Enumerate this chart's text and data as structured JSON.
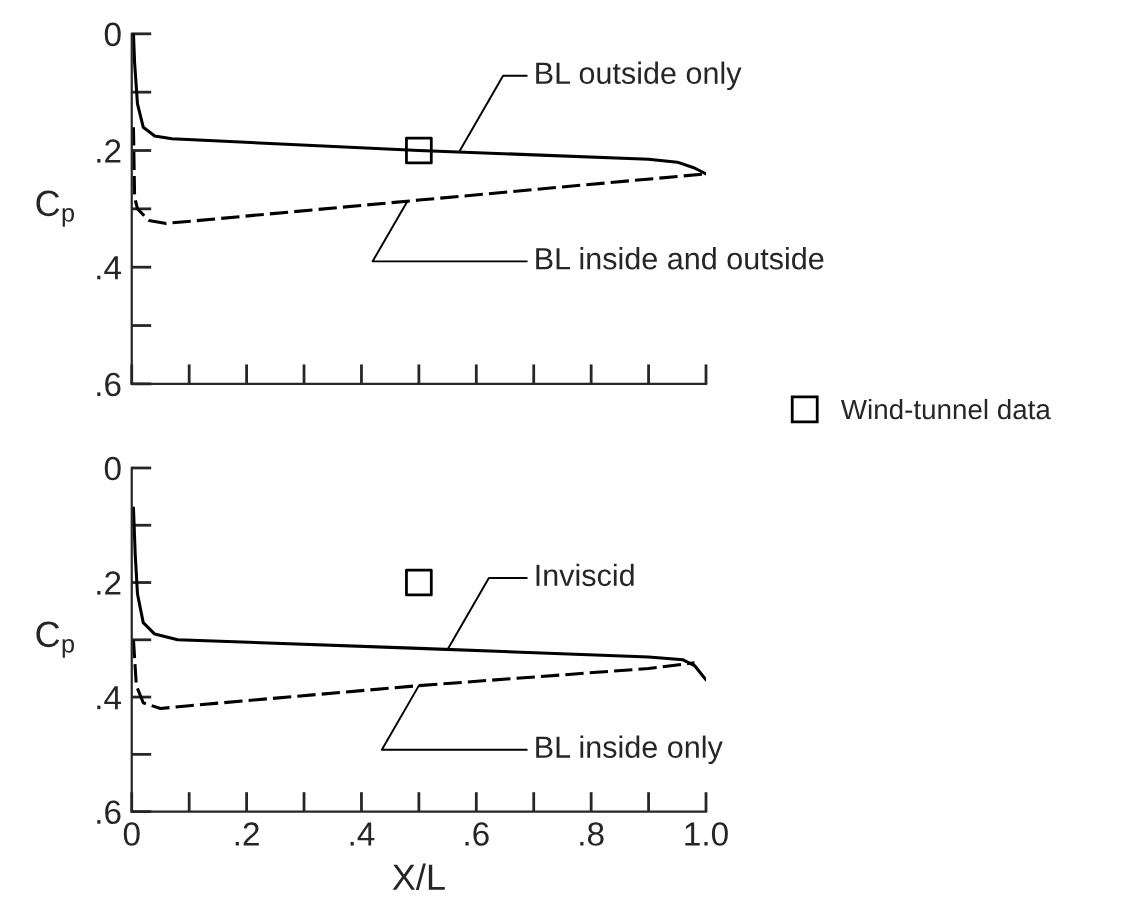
{
  "chart_data": [
    {
      "type": "line",
      "ylabel": "C$_{p}$",
      "xlim": [
        0,
        1.0
      ],
      "ylim": [
        0.6,
        0
      ],
      "tick_labels": "y",
      "legend": "right",
      "grid": false,
      "xticks": [
        0,
        {
          "value": 0.1,
          "label": null
        },
        {
          "value": 0.2,
          "label": null
        },
        {
          "value": 0.3,
          "label": null
        },
        {
          "value": 0.4,
          "label": null
        },
        {
          "value": 0.5,
          "label": null
        },
        {
          "value": 0.6,
          "label": null
        },
        {
          "value": 0.7,
          "label": null
        },
        {
          "value": 0.8,
          "label": null
        },
        {
          "value": 0.9,
          "label": null
        },
        {
          "value": 1.0,
          "label": null
        }
      ],
      "yticks": [
        0,
        {
          "value": 0.1,
          "label": null
        },
        {
          "value": 0.2,
          "label": ".2"
        },
        {
          "value": 0.3,
          "label": null
        },
        {
          "value": 0.4,
          "label": ".4"
        },
        {
          "value": 0.5,
          "label": null
        },
        {
          "value": 0.6,
          "label": ".6"
        }
      ],
      "series": [
        {
          "name": "BL outside only",
          "color": "#000000",
          "line_style": "solid",
          "marker": "none",
          "x": [
            0.003,
            0.005,
            0.01,
            0.02,
            0.04,
            0.07,
            0.5,
            0.9,
            0.95,
            0.98,
            1.0
          ],
          "values": [
            0.0,
            0.05,
            0.12,
            0.16,
            0.175,
            0.18,
            0.2,
            0.215,
            0.22,
            0.23,
            0.24
          ]
        },
        {
          "name": "BL inside and outside",
          "color": "#000000",
          "line_style": "dashed",
          "marker": "none",
          "x": [
            0.003,
            0.005,
            0.01,
            0.03,
            0.06,
            0.5,
            1.0
          ],
          "values": [
            0.16,
            0.28,
            0.3,
            0.32,
            0.325,
            0.285,
            0.24
          ]
        },
        {
          "name": "Wind-tunnel data",
          "type": "scatter",
          "color": "#000000",
          "marker": "square",
          "x": [
            0.5
          ],
          "values": [
            0.2
          ]
        }
      ]
    },
    {
      "type": "line",
      "ylabel": "C$_{p}$",
      "xlabel": "X/L",
      "xlim": [
        0,
        1.0
      ],
      "ylim": [
        0.6,
        0
      ],
      "grid": false,
      "xticks": [
        0,
        {
          "value": 0.1,
          "label": null
        },
        {
          "value": 0.2,
          "label": ".2"
        },
        {
          "value": 0.3,
          "label": null
        },
        {
          "value": 0.4,
          "label": ".4"
        },
        {
          "value": 0.5,
          "label": null
        },
        {
          "value": 0.6,
          "label": ".6"
        },
        {
          "value": 0.7,
          "label": null
        },
        {
          "value": 0.8,
          "label": ".8"
        },
        {
          "value": 0.9,
          "label": null
        },
        {
          "value": 1.0,
          "label": "1.0"
        }
      ],
      "yticks": [
        0,
        {
          "value": 0.1,
          "label": null
        },
        {
          "value": 0.2,
          "label": ".2"
        },
        {
          "value": 0.3,
          "label": null
        },
        {
          "value": 0.4,
          "label": ".4"
        },
        {
          "value": 0.5,
          "label": null
        },
        {
          "value": 0.6,
          "label": ".6"
        }
      ],
      "series": [
        {
          "name": "Inviscid",
          "color": "#000000",
          "line_style": "solid",
          "marker": "none",
          "x": [
            0.003,
            0.006,
            0.01,
            0.02,
            0.04,
            0.08,
            0.5,
            0.9,
            0.96,
            0.98,
            1.0
          ],
          "values": [
            0.07,
            0.15,
            0.22,
            0.27,
            0.29,
            0.3,
            0.315,
            0.33,
            0.335,
            0.345,
            0.37
          ]
        },
        {
          "name": "BL inside only",
          "color": "#000000",
          "line_style": "dashed",
          "marker": "none",
          "x": [
            0.003,
            0.008,
            0.02,
            0.05,
            0.1,
            0.5,
            0.9,
            0.98
          ],
          "values": [
            0.3,
            0.38,
            0.41,
            0.42,
            0.415,
            0.38,
            0.35,
            0.34
          ]
        },
        {
          "type": "scatter",
          "color": "#000000",
          "marker": "square",
          "x": [
            0.5
          ],
          "values": [
            0.2
          ]
        }
      ]
    }
  ]
}
